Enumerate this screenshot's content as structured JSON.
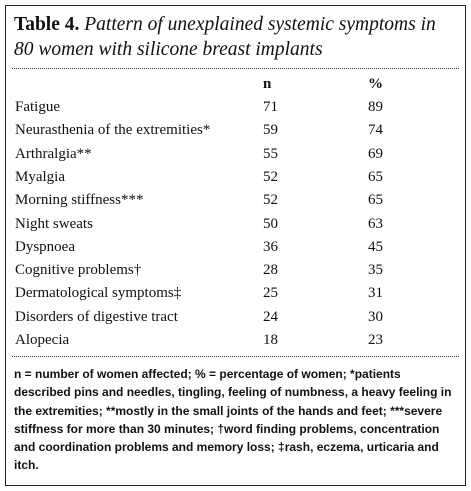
{
  "header": {
    "label": "Table 4.",
    "title": "Pattern of unexplained systemic symptoms in 80 women with silicone breast implants"
  },
  "table": {
    "columns": [
      "n",
      "%"
    ],
    "rows": [
      [
        "Fatigue",
        71,
        89
      ],
      [
        "Neurasthenia of the extremities*",
        59,
        74
      ],
      [
        "Arthralgia**",
        55,
        69
      ],
      [
        "Myalgia",
        52,
        65
      ],
      [
        "Morning stiffness***",
        52,
        65
      ],
      [
        "Night sweats",
        50,
        63
      ],
      [
        "Dyspnoea",
        36,
        45
      ],
      [
        "Cognitive problems†",
        28,
        35
      ],
      [
        "Dermatological symptoms‡",
        25,
        31
      ],
      [
        "Disorders of digestive tract",
        24,
        30
      ],
      [
        "Alopecia",
        18,
        23
      ]
    ]
  },
  "footnote": "n = number of women affected; % = percentage of women; *patients described pins and needles, tingling, feeling of numbness, a heavy feeling in the extremities; **mostly in the small joints of the hands and feet; ***severe stiffness for more than 30 minutes; †word finding problems, concentration and coordination problems and memory loss; ‡rash, eczema, urticaria and itch."
}
